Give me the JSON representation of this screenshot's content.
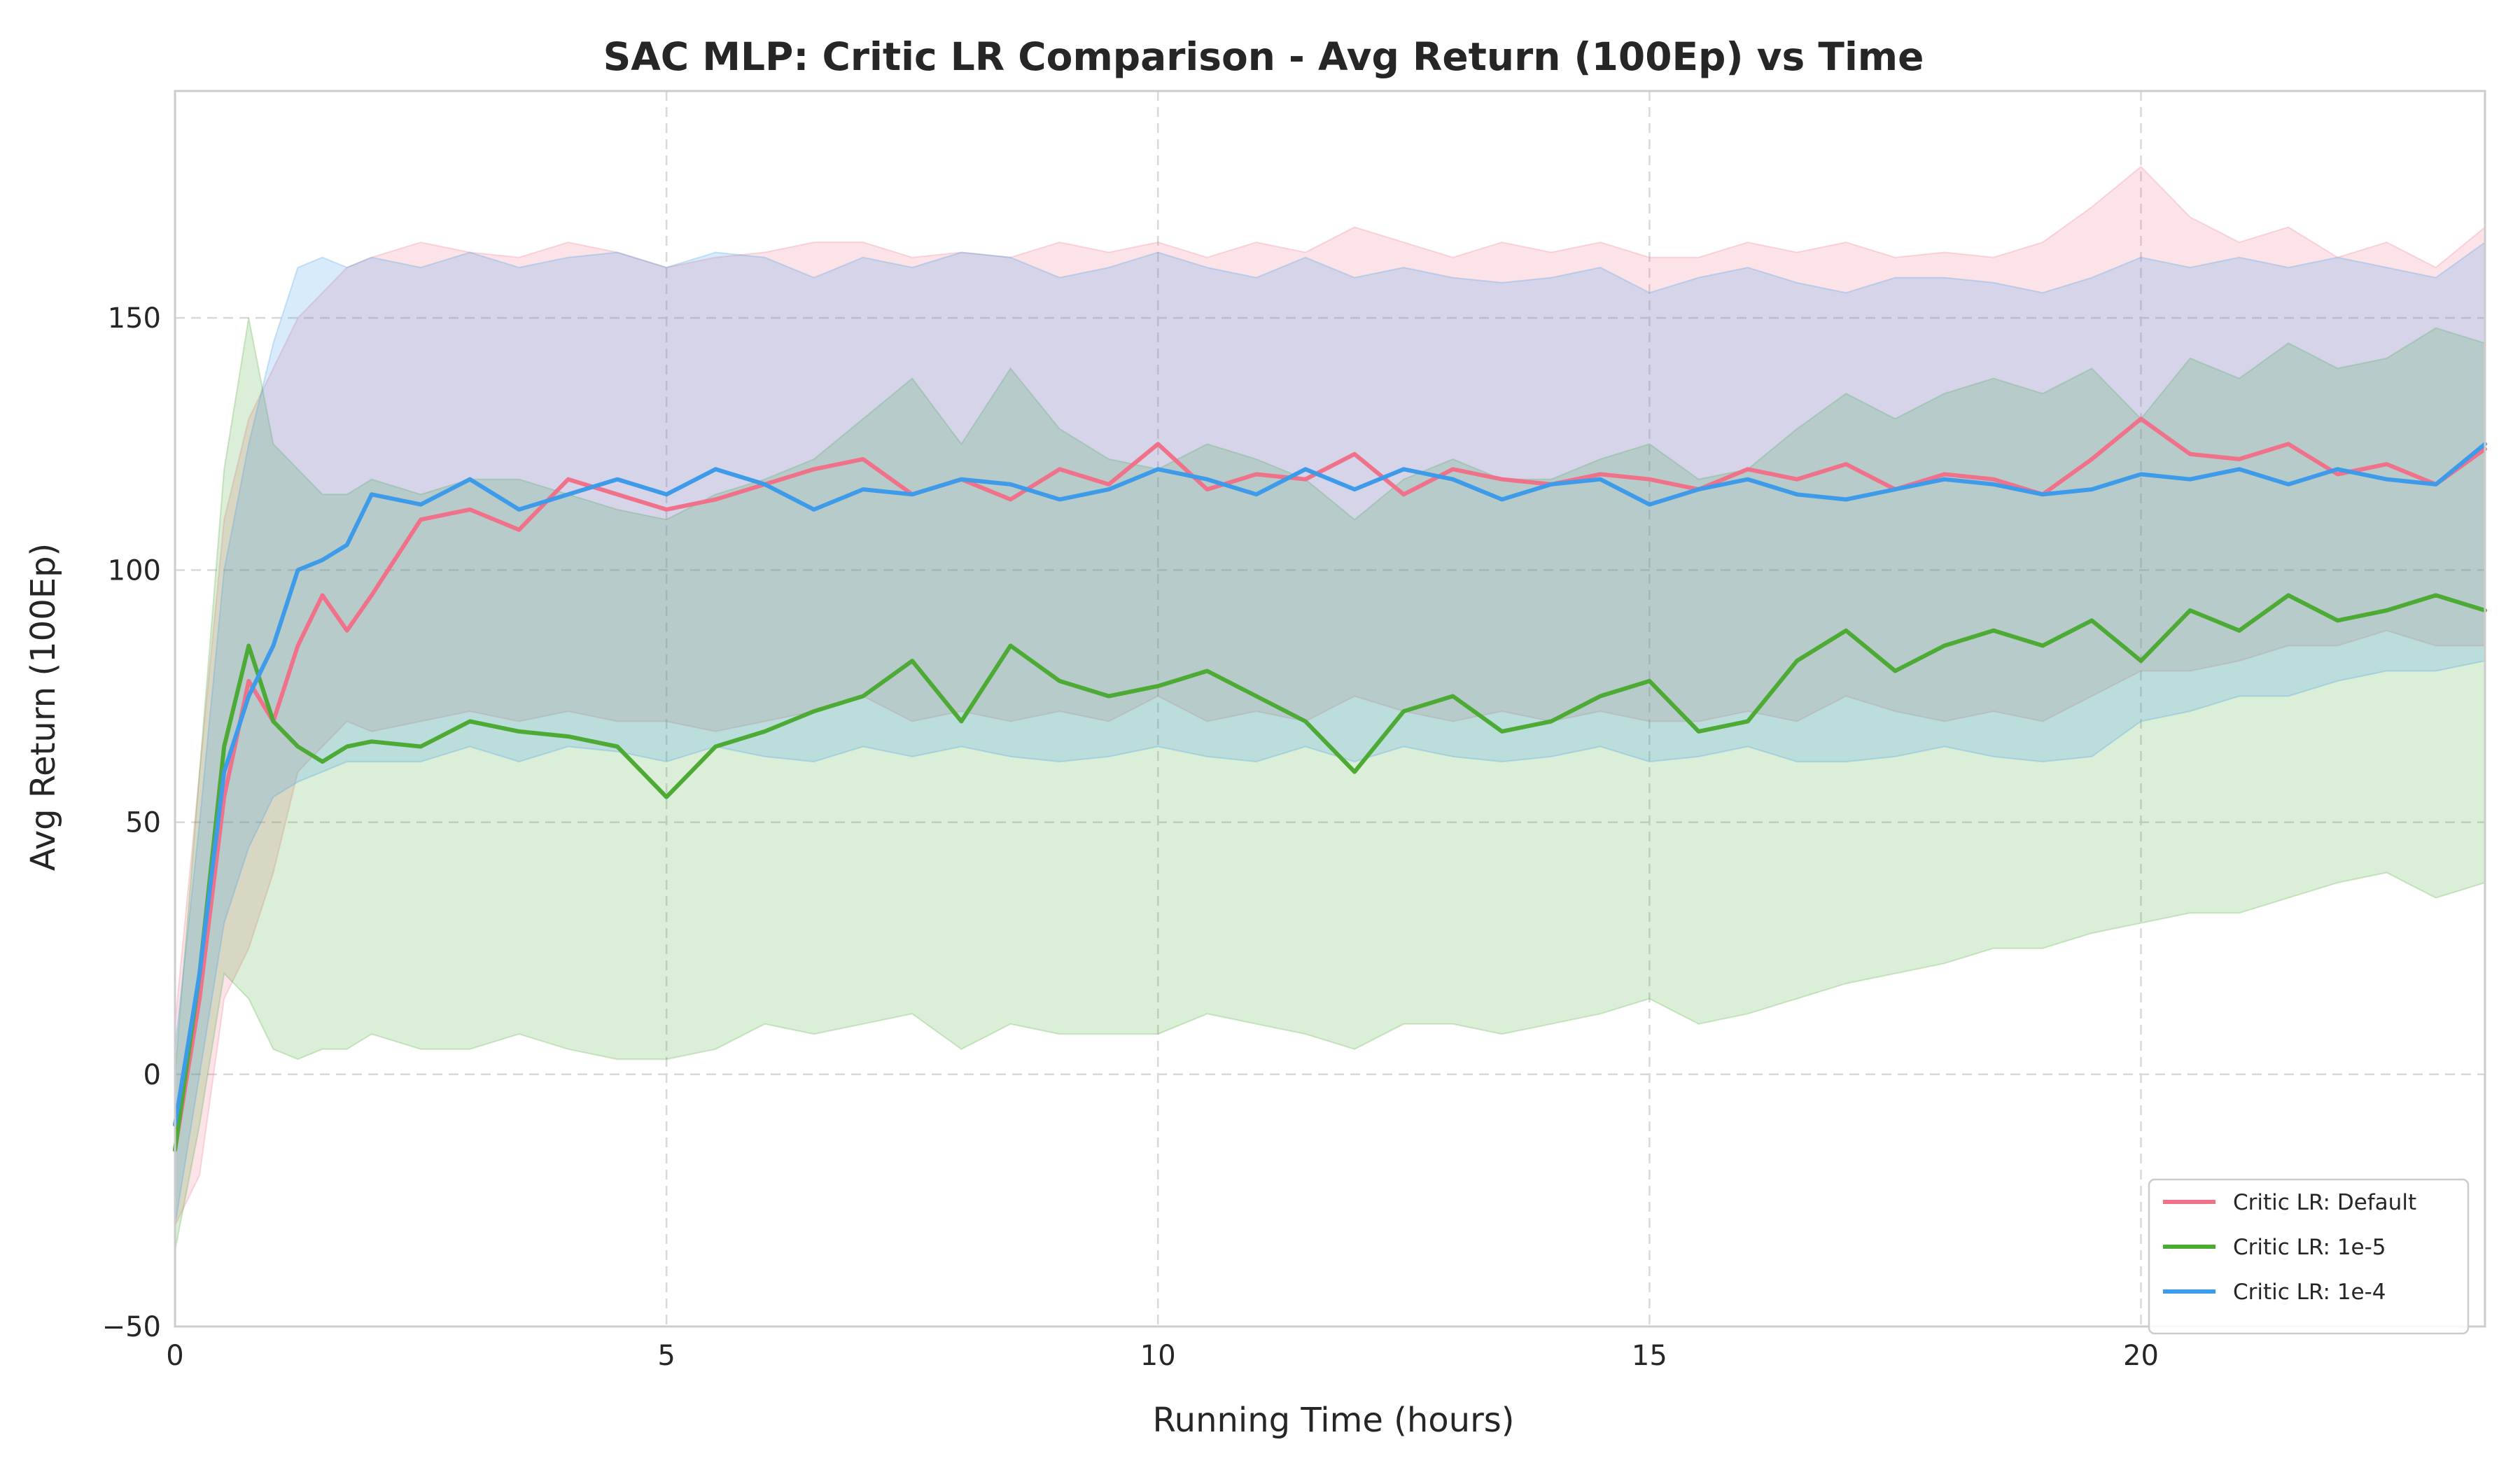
{
  "chart_data": {
    "type": "line",
    "title": "SAC MLP: Critic LR Comparison - Avg Return (100Ep) vs Time",
    "xlabel": "Running Time (hours)",
    "ylabel": "Avg Return (100Ep)",
    "xlim": [
      0,
      23.5
    ],
    "ylim": [
      -50,
      195
    ],
    "xticks": [
      0,
      5,
      10,
      15,
      20
    ],
    "yticks": [
      -50,
      0,
      50,
      100,
      150
    ],
    "grid": true,
    "legend_position": "bottom-right",
    "shaded_bands": true,
    "series": [
      {
        "name": "Critic LR: Default",
        "color": "#f0728a",
        "x": [
          0,
          0.25,
          0.5,
          0.75,
          1,
          1.25,
          1.5,
          1.75,
          2,
          2.5,
          3,
          3.5,
          4,
          4.5,
          5,
          5.5,
          6,
          6.5,
          7,
          7.5,
          8,
          8.5,
          9,
          9.5,
          10,
          10.5,
          11,
          11.5,
          12,
          12.5,
          13,
          13.5,
          14,
          14.5,
          15,
          15.5,
          16,
          16.5,
          17,
          17.5,
          18,
          18.5,
          19,
          19.5,
          20,
          20.5,
          21,
          21.5,
          22,
          22.5,
          23,
          23.5
        ],
        "y": [
          -15,
          15,
          55,
          78,
          70,
          85,
          95,
          88,
          95,
          110,
          112,
          108,
          118,
          115,
          112,
          114,
          117,
          120,
          122,
          115,
          118,
          114,
          120,
          117,
          125,
          116,
          119,
          118,
          123,
          115,
          120,
          118,
          117,
          119,
          118,
          116,
          120,
          118,
          121,
          116,
          119,
          118,
          115,
          122,
          130,
          123,
          122,
          125,
          119,
          121,
          117,
          124
        ],
        "lower": [
          -30,
          -20,
          15,
          25,
          40,
          60,
          65,
          70,
          68,
          70,
          72,
          70,
          72,
          70,
          70,
          68,
          70,
          72,
          75,
          70,
          72,
          70,
          72,
          70,
          75,
          70,
          72,
          70,
          75,
          72,
          70,
          72,
          70,
          72,
          70,
          70,
          72,
          70,
          75,
          72,
          70,
          72,
          70,
          75,
          80,
          80,
          82,
          85,
          85,
          88,
          85,
          85
        ],
        "upper": [
          10,
          60,
          110,
          130,
          140,
          150,
          155,
          160,
          162,
          165,
          163,
          162,
          165,
          163,
          160,
          162,
          163,
          165,
          165,
          162,
          163,
          162,
          165,
          163,
          165,
          162,
          165,
          163,
          168,
          165,
          162,
          165,
          163,
          165,
          162,
          162,
          165,
          163,
          165,
          162,
          163,
          162,
          165,
          172,
          180,
          170,
          165,
          168,
          162,
          165,
          160,
          168
        ]
      },
      {
        "name": "Critic LR: 1e-5",
        "color": "#4daa35",
        "x": [
          0,
          0.25,
          0.5,
          0.75,
          1,
          1.25,
          1.5,
          1.75,
          2,
          2.5,
          3,
          3.5,
          4,
          4.5,
          5,
          5.5,
          6,
          6.5,
          7,
          7.5,
          8,
          8.5,
          9,
          9.5,
          10,
          10.5,
          11,
          11.5,
          12,
          12.5,
          13,
          13.5,
          14,
          14.5,
          15,
          15.5,
          16,
          16.5,
          17,
          17.5,
          18,
          18.5,
          19,
          19.5,
          20,
          20.5,
          21,
          21.5,
          22,
          22.5,
          23,
          23.5
        ],
        "y": [
          -15,
          20,
          65,
          85,
          70,
          65,
          62,
          65,
          66,
          65,
          70,
          68,
          67,
          65,
          55,
          65,
          68,
          72,
          75,
          82,
          70,
          85,
          78,
          75,
          77,
          80,
          75,
          70,
          60,
          72,
          75,
          68,
          70,
          75,
          78,
          68,
          70,
          82,
          88,
          80,
          85,
          88,
          85,
          90,
          82,
          92,
          88,
          95,
          90,
          92,
          95,
          92
        ],
        "lower": [
          -35,
          -10,
          20,
          15,
          5,
          3,
          5,
          5,
          8,
          5,
          5,
          8,
          5,
          3,
          3,
          5,
          10,
          8,
          10,
          12,
          5,
          10,
          8,
          8,
          8,
          12,
          10,
          8,
          5,
          10,
          10,
          8,
          10,
          12,
          15,
          10,
          12,
          15,
          18,
          20,
          22,
          25,
          25,
          28,
          30,
          32,
          32,
          35,
          38,
          40,
          35,
          38
        ],
        "upper": [
          0,
          60,
          120,
          150,
          125,
          120,
          115,
          115,
          118,
          115,
          118,
          118,
          115,
          112,
          110,
          115,
          118,
          122,
          130,
          138,
          125,
          140,
          128,
          122,
          120,
          125,
          122,
          118,
          110,
          118,
          122,
          118,
          118,
          122,
          125,
          118,
          120,
          128,
          135,
          130,
          135,
          138,
          135,
          140,
          130,
          142,
          138,
          145,
          140,
          142,
          148,
          145
        ]
      },
      {
        "name": "Critic LR: 1e-4",
        "color": "#3d9be9",
        "x": [
          0,
          0.25,
          0.5,
          0.75,
          1,
          1.25,
          1.5,
          1.75,
          2,
          2.5,
          3,
          3.5,
          4,
          4.5,
          5,
          5.5,
          6,
          6.5,
          7,
          7.5,
          8,
          8.5,
          9,
          9.5,
          10,
          10.5,
          11,
          11.5,
          12,
          12.5,
          13,
          13.5,
          14,
          14.5,
          15,
          15.5,
          16,
          16.5,
          17,
          17.5,
          18,
          18.5,
          19,
          19.5,
          20,
          20.5,
          21,
          21.5,
          22,
          22.5,
          23,
          23.5
        ],
        "y": [
          -10,
          20,
          60,
          75,
          85,
          100,
          102,
          105,
          115,
          113,
          118,
          112,
          115,
          118,
          115,
          120,
          117,
          112,
          116,
          115,
          118,
          117,
          114,
          116,
          120,
          118,
          115,
          120,
          116,
          120,
          118,
          114,
          117,
          118,
          113,
          116,
          118,
          115,
          114,
          116,
          118,
          117,
          115,
          116,
          119,
          118,
          120,
          117,
          120,
          118,
          117,
          125
        ],
        "lower": [
          -30,
          0,
          30,
          45,
          55,
          58,
          60,
          62,
          62,
          62,
          65,
          62,
          65,
          64,
          62,
          65,
          63,
          62,
          65,
          63,
          65,
          63,
          62,
          63,
          65,
          63,
          62,
          65,
          62,
          65,
          63,
          62,
          63,
          65,
          62,
          63,
          65,
          62,
          62,
          63,
          65,
          63,
          62,
          63,
          70,
          72,
          75,
          75,
          78,
          80,
          80,
          82
        ],
        "upper": [
          5,
          50,
          100,
          125,
          145,
          160,
          162,
          160,
          162,
          160,
          163,
          160,
          162,
          163,
          160,
          163,
          162,
          158,
          162,
          160,
          163,
          162,
          158,
          160,
          163,
          160,
          158,
          162,
          158,
          160,
          158,
          157,
          158,
          160,
          155,
          158,
          160,
          157,
          155,
          158,
          158,
          157,
          155,
          158,
          162,
          160,
          162,
          160,
          162,
          160,
          158,
          165
        ]
      }
    ]
  }
}
